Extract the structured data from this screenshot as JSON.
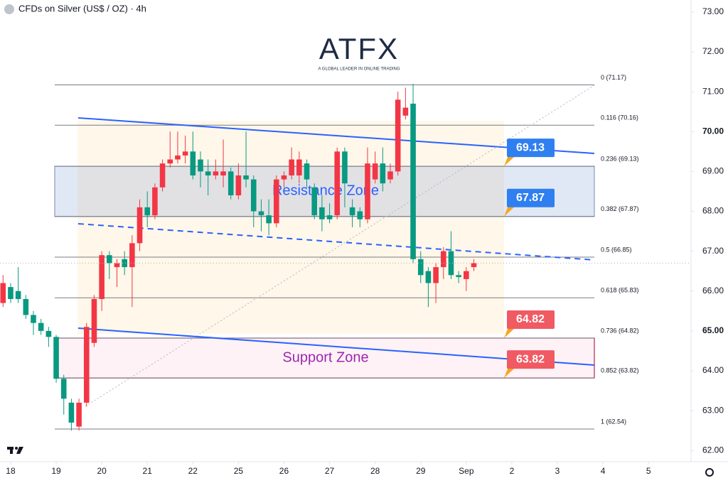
{
  "chart_data": {
    "type": "candlestick",
    "title": "CFDs on Silver (US$ / OZ) · 4h",
    "logo": {
      "brand": "ATFX",
      "tagline": "A GLOBAL LEADER IN ONLINE TRADING"
    },
    "up_color": "#f23645",
    "down_color": "#089981",
    "xlim": [
      -0.4,
      90.6
    ],
    "xticks": [
      {
        "value": 1,
        "label": "18"
      },
      {
        "value": 7,
        "label": "19"
      },
      {
        "value": 13,
        "label": "20"
      },
      {
        "value": 19,
        "label": "21"
      },
      {
        "value": 25,
        "label": "22"
      },
      {
        "value": 31,
        "label": "25"
      },
      {
        "value": 37,
        "label": "26"
      },
      {
        "value": 43,
        "label": "27"
      },
      {
        "value": 49,
        "label": "28"
      },
      {
        "value": 55,
        "label": "29"
      },
      {
        "value": 61,
        "label": "Sep"
      },
      {
        "value": 67,
        "label": "2"
      },
      {
        "value": 73,
        "label": "3"
      },
      {
        "value": 79,
        "label": "4"
      },
      {
        "value": 85,
        "label": "5"
      }
    ],
    "ylim": [
      61.72,
      73.3
    ],
    "yticks": [
      {
        "value": 73,
        "label": "73.00"
      },
      {
        "value": 72,
        "label": "72.00"
      },
      {
        "value": 71,
        "label": "71.00"
      },
      {
        "value": 70,
        "label": "70.00"
      },
      {
        "value": 69,
        "label": "69.00"
      },
      {
        "value": 68,
        "label": "68.00"
      },
      {
        "value": 67,
        "label": "67.00"
      },
      {
        "value": 66,
        "label": "66.00"
      },
      {
        "value": 65,
        "label": "65.00"
      },
      {
        "value": 64,
        "label": "64.00"
      },
      {
        "value": 63,
        "label": "63.00"
      },
      {
        "value": 62,
        "label": "62.00"
      }
    ],
    "open": [
      65.7,
      66.1,
      66.0,
      65.8,
      65.4,
      65.2,
      65.0,
      64.85,
      63.8,
      63.2,
      62.6,
      63.2,
      64.7,
      65.8,
      66.9,
      66.6,
      66.8,
      66.6,
      67.2,
      68.1,
      67.9,
      68.6,
      69.2,
      69.3,
      69.4,
      69.5,
      69.3,
      69.0,
      68.9,
      68.9,
      69.0,
      68.4,
      68.9,
      68.8,
      68.0,
      67.9,
      67.7,
      68.8,
      68.9,
      68.9,
      69.2,
      68.6,
      68.1,
      67.9,
      67.9,
      69.5,
      68.1,
      68.0,
      67.8,
      68.8,
      69.2,
      68.8,
      69.0,
      70.4,
      70.7,
      66.8,
      66.5,
      66.2,
      66.6,
      67.0,
      66.4,
      66.3,
      66.6
    ],
    "high": [
      66.4,
      66.2,
      66.6,
      65.9,
      65.5,
      65.3,
      65.1,
      64.9,
      63.9,
      63.3,
      63.3,
      65.2,
      65.9,
      67.0,
      67.0,
      66.8,
      67.0,
      67.4,
      68.3,
      68.5,
      68.7,
      69.3,
      70.0,
      70.0,
      69.9,
      70.0,
      69.5,
      69.3,
      69.3,
      69.8,
      69.1,
      69.2,
      70.0,
      68.9,
      68.3,
      68.3,
      68.9,
      69.0,
      69.6,
      69.5,
      69.3,
      68.7,
      68.4,
      68.2,
      69.6,
      69.6,
      68.3,
      68.1,
      69.6,
      69.5,
      69.6,
      69.2,
      71.0,
      71.1,
      71.2,
      67.0,
      66.6,
      66.7,
      67.1,
      67.5,
      66.5,
      66.6,
      66.8
    ],
    "low": [
      65.6,
      65.7,
      65.7,
      65.3,
      64.9,
      64.9,
      64.6,
      63.7,
      62.9,
      62.5,
      62.5,
      63.1,
      64.6,
      65.5,
      66.3,
      66.1,
      66.4,
      65.6,
      67.0,
      67.6,
      67.8,
      68.5,
      69.1,
      69.2,
      69.2,
      68.8,
      68.6,
      68.4,
      68.8,
      68.6,
      68.3,
      68.3,
      68.6,
      67.6,
      67.5,
      67.4,
      67.6,
      68.6,
      68.8,
      68.7,
      68.6,
      67.8,
      67.5,
      67.7,
      67.8,
      68.1,
      67.6,
      67.6,
      67.7,
      68.7,
      68.5,
      68.7,
      68.9,
      70.3,
      66.7,
      66.2,
      65.6,
      65.7,
      66.3,
      66.3,
      66.2,
      66.0,
      66.5
    ],
    "close": [
      66.2,
      65.8,
      65.8,
      65.4,
      65.2,
      65.0,
      64.85,
      63.8,
      63.3,
      62.7,
      63.2,
      65.1,
      65.8,
      66.9,
      66.7,
      66.7,
      66.6,
      67.2,
      68.1,
      67.9,
      68.6,
      69.2,
      69.3,
      69.4,
      69.5,
      68.9,
      69.0,
      68.9,
      69.0,
      69.0,
      68.4,
      68.9,
      68.8,
      68.0,
      67.9,
      67.7,
      68.8,
      68.9,
      69.3,
      69.3,
      68.8,
      67.9,
      67.8,
      67.8,
      69.5,
      68.7,
      67.9,
      67.8,
      69.2,
      69.2,
      68.7,
      69.0,
      70.8,
      70.6,
      66.8,
      66.4,
      66.2,
      66.6,
      67.0,
      66.4,
      66.35,
      66.5,
      66.7
    ],
    "fib_levels": [
      {
        "label": "0 (71.17)",
        "value": 71.17
      },
      {
        "label": "0.116 (70.16)",
        "value": 70.16
      },
      {
        "label": "0.236 (69.13)",
        "value": 69.13
      },
      {
        "label": "0.382 (67.87)",
        "value": 67.87
      },
      {
        "label": "0.5 (66.85)",
        "value": 66.85
      },
      {
        "label": "0.618 (65.83)",
        "value": 65.83
      },
      {
        "label": "0.736 (64.82)",
        "value": 64.82
      },
      {
        "label": "0.852 (63.82)",
        "value": 63.82
      },
      {
        "label": "1 (62.54)",
        "value": 62.54
      }
    ],
    "zones": [
      {
        "name": "Resistance Zone",
        "top": 69.13,
        "bottom": 67.87,
        "fill": "rgba(120,150,210,0.22)",
        "border": "#8a9bb8",
        "text_color": "#2962ff"
      },
      {
        "name": "Support Zone",
        "top": 64.82,
        "bottom": 63.82,
        "fill": "rgba(233,30,99,0.06)",
        "border": "#b0294e",
        "text_color": "#9c27b0"
      }
    ],
    "callouts": [
      {
        "label": "69.13",
        "value": 69.13,
        "color": "#2f7ff0"
      },
      {
        "label": "67.87",
        "value": 67.87,
        "color": "#2f7ff0"
      },
      {
        "label": "64.82",
        "value": 64.82,
        "color": "#f05a63"
      },
      {
        "label": "63.82",
        "value": 63.82,
        "color": "#f05a63"
      }
    ]
  }
}
